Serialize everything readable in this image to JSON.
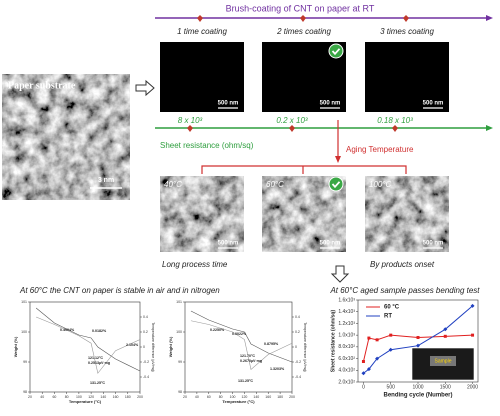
{
  "header": {
    "title": "Brush-coating of CNT on paper at RT"
  },
  "substrate": {
    "label": "Paper substrate",
    "scale": "3 nm"
  },
  "coatings": [
    {
      "label": "1 time coating",
      "scale": "500 nm",
      "resistance": "8 x 10³"
    },
    {
      "label": "2 times coating",
      "scale": "500 nm",
      "resistance": "0.2 x 10³"
    },
    {
      "label": "3 times coating",
      "scale": "500 nm",
      "resistance": "0.18 x 10³"
    }
  ],
  "resistance_label": "Sheet resistance (ohm/sq)",
  "aging": {
    "title": "Aging Temperature",
    "samples": [
      {
        "label": "40°C",
        "scale": "500 nm"
      },
      {
        "label": "60°C",
        "scale": "500 nm"
      },
      {
        "label": "100°C",
        "scale": "500 nm"
      }
    ],
    "notes": [
      "Long process time",
      "By products onset"
    ]
  },
  "tga_caption": "At 60°C the CNT on paper is stable in air and in nitrogen",
  "chart_data": [
    {
      "type": "line",
      "x_label": "Temperature (°C)",
      "y_label": "Weight (%)",
      "y2_label": "Temperature difference (µV/mg)",
      "x": [
        30,
        60,
        100,
        120,
        131,
        160,
        200
      ],
      "xlim": [
        20,
        200
      ],
      "xticks": [
        20,
        40,
        60,
        80,
        100,
        120,
        140,
        160,
        180,
        200
      ],
      "ylim": [
        98,
        101
      ],
      "yticks": [
        98,
        99,
        100,
        101
      ],
      "y2lim": [
        -0.6,
        0.6
      ],
      "y2ticks": [
        -0.4,
        -0.2,
        0,
        0.2,
        0.4
      ],
      "series": [
        {
          "color": "#555555",
          "values": [
            100.8,
            100.3,
            99.9,
            99.8,
            99.5,
            99.1,
            98.7
          ]
        },
        {
          "color": "#999999",
          "axis": "y2",
          "values": [
            0.4,
            0.3,
            0.15,
            0.05,
            -0.35,
            -0.05,
            0.1
          ]
        }
      ],
      "annotations": [
        "0.4904%",
        "0.0182%",
        "2.104%",
        "121.12°C",
        "0.2513µV·mg",
        "131.25°C"
      ]
    },
    {
      "type": "line",
      "x_label": "Temperature (°C)",
      "y_label": "Weight (%)",
      "y2_label": "Temperature difference (µV/mg)",
      "x": [
        30,
        60,
        100,
        120,
        131,
        160,
        200
      ],
      "xlim": [
        20,
        200
      ],
      "xticks": [
        20,
        40,
        60,
        80,
        100,
        120,
        140,
        160,
        180,
        200
      ],
      "ylim": [
        98,
        101
      ],
      "yticks": [
        98,
        99,
        100,
        101
      ],
      "y2lim": [
        -0.6,
        0.6
      ],
      "y2ticks": [
        -0.4,
        -0.2,
        0,
        0.2,
        0.4
      ],
      "series": [
        {
          "color": "#555555",
          "values": [
            100.7,
            100.4,
            100.1,
            100.0,
            99.6,
            99.3,
            99.0
          ]
        },
        {
          "color": "#999999",
          "axis": "y2",
          "values": [
            0.35,
            0.3,
            0.2,
            0.1,
            -0.3,
            -0.1,
            0.05
          ]
        }
      ],
      "annotations": [
        "0.2250%",
        "0.0022%",
        "0.8795%",
        "121.70°C",
        "0.2670µV·mg",
        "1.3203%",
        "131.25°C"
      ]
    },
    {
      "type": "line",
      "title": "At 60°C aged sample passes bending test",
      "x_label": "Bending cycle (Number)",
      "y_label": "Sheet resistance (ohm/sq)",
      "x": [
        0,
        100,
        250,
        500,
        1000,
        1500,
        2000
      ],
      "xlim": [
        -100,
        2100
      ],
      "xticks": [
        0,
        500,
        1000,
        1500,
        2000
      ],
      "ylim": [
        200,
        1600
      ],
      "yticks": [
        {
          "value": 200,
          "label": "2.0x10²"
        },
        {
          "value": 400,
          "label": "4.0x10²"
        },
        {
          "value": 600,
          "label": "6.0x10²"
        },
        {
          "value": 800,
          "label": "8.0x10²"
        },
        {
          "value": 1000,
          "label": "1.0x10³"
        },
        {
          "value": 1200,
          "label": "1.2x10³"
        },
        {
          "value": 1400,
          "label": "1.4x10³"
        },
        {
          "value": 1600,
          "label": "1.6x10³"
        }
      ],
      "legend": "top-left",
      "inset_label": "Sample",
      "series": [
        {
          "name": "60 °C",
          "color": "#e02020",
          "values": [
            550,
            950,
            920,
            1000,
            960,
            980,
            1000
          ]
        },
        {
          "name": "RT",
          "color": "#2040c0",
          "values": [
            350,
            420,
            600,
            750,
            820,
            1100,
            1500
          ]
        }
      ]
    }
  ]
}
